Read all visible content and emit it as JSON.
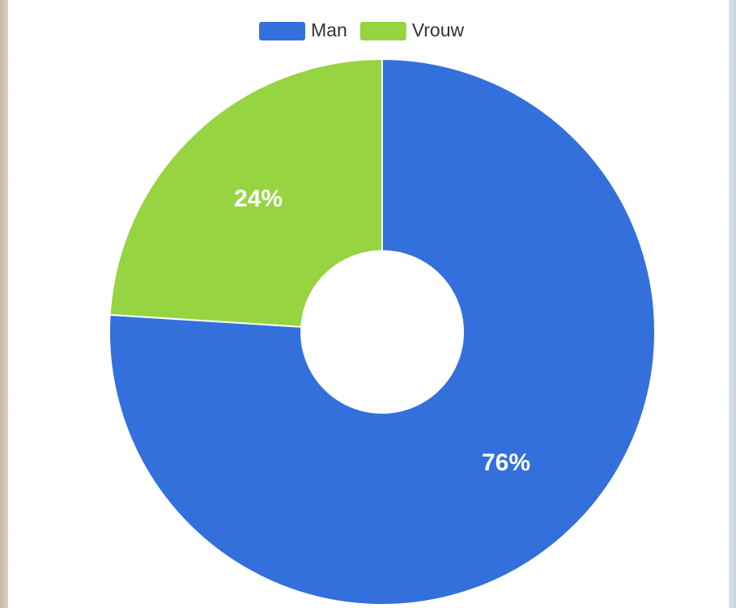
{
  "chart_data": {
    "type": "doughnut",
    "categories": [
      "Man",
      "Vrouw"
    ],
    "values": [
      76,
      24
    ],
    "value_labels": [
      "76%",
      "24%"
    ],
    "colors": [
      "#3370db",
      "#96d442"
    ],
    "legend": "top"
  }
}
